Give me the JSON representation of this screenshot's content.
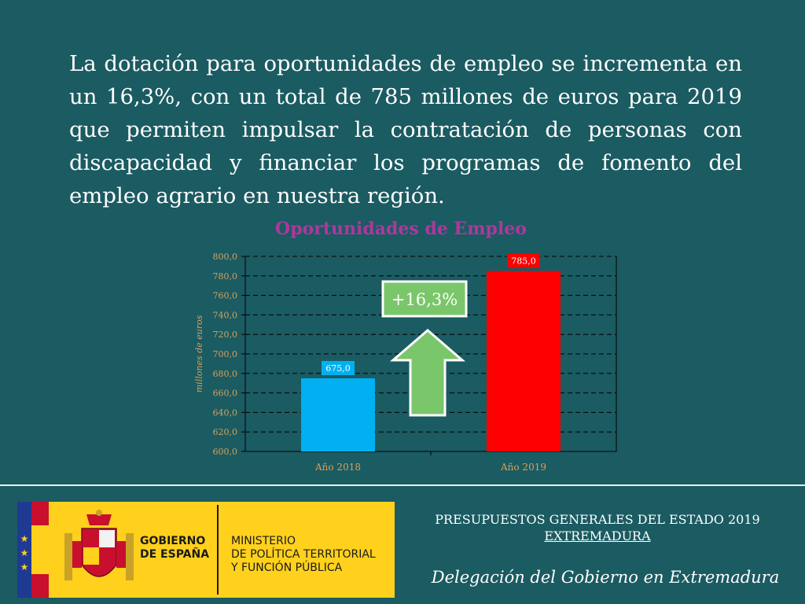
{
  "headline": "La dotación para oportunidades de empleo se incrementa en un 16,3%, con un total de 785 millones de euros para 2019 que permiten impulsar la contratación de personas con discapacidad y financiar los programas de fomento del empleo agrario en nuestra región.",
  "colors": {
    "background": "#1b5b62",
    "bar_2018": "#00b0f0",
    "bar_2019": "#ff0000",
    "arrow": "#7ac66a",
    "title": "#b0379c",
    "axis_text": "#d9a15b"
  },
  "chart_data": {
    "type": "bar",
    "title": "Oportunidades de Empleo",
    "ylabel": "millones de euros",
    "xlabel": "",
    "categories": [
      "Año 2018",
      "Año 2019"
    ],
    "values": [
      675.0,
      785.0
    ],
    "value_labels": [
      "675,0",
      "785,0"
    ],
    "ylim": [
      600,
      800
    ],
    "yticks": [
      "600,0",
      "620,0",
      "640,0",
      "660,0",
      "680,0",
      "700,0",
      "720,0",
      "740,0",
      "760,0",
      "780,0",
      "800,0"
    ],
    "grid": true,
    "annotation": "+16,3%"
  },
  "footer": {
    "title_line1": "PRESUPUESTOS GENERALES DEL ESTADO 2019",
    "title_line2": "EXTREMADURA",
    "subtitle": "Delegación del Gobierno en Extremadura"
  },
  "logo": {
    "gov_line1": "GOBIERNO",
    "gov_line2": "DE ESPAÑA",
    "ministry_line1": "MINISTERIO",
    "ministry_line2": "DE POLÍTICA TERRITORIAL",
    "ministry_line3": "Y FUNCIÓN PÚBLICA",
    "stars": [
      "★",
      "★",
      "★"
    ]
  }
}
